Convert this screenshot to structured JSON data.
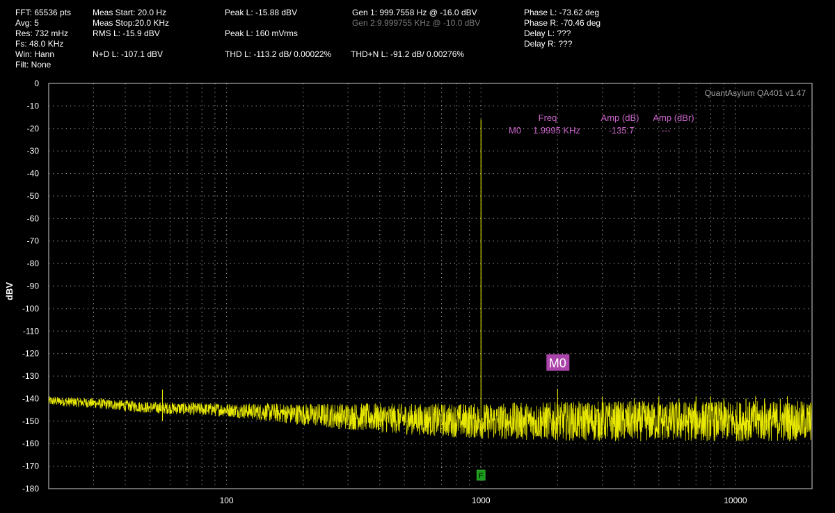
{
  "stats": {
    "fft": "FFT: 65536 pts",
    "avg": "Avg: 5",
    "res": "Res: 732 mHz",
    "fs": "Fs: 48.0 KHz",
    "win": "Win: Hann",
    "filt": "Filt: None",
    "meas_start": "Meas Start: 20.0 Hz",
    "meas_stop": "Meas Stop:20.0 KHz",
    "rms_l": "RMS L: -15.9 dBV",
    "nd_l": "N+D L: -107.1 dBV",
    "peak_l_dbv": "Peak L: -15.88 dBV",
    "peak_l_vrms": "Peak L: 160 mVrms",
    "thd_l": "THD L: -113.2 dB/ 0.00022%",
    "gen1": "Gen 1: 999.7558 Hz @ -16.0  dBV",
    "gen2": "Gen 2:9.999755 KHz @ -10.0  dBV",
    "thdn_l": "THD+N L: -91.2 dB/ 0.00276%",
    "phase_l": "Phase L: -73.62 deg",
    "phase_r": "Phase R: -70.46 deg",
    "delay_l": "Delay L: ???",
    "delay_r": "Delay R: ???"
  },
  "colors": {
    "trace": "#e8e800",
    "marker": "#cc66cc",
    "marker_label_bg": "#aa44aa",
    "fundamental_marker": "#1a9a1a",
    "grid": "#9a9a9a",
    "frame": "#cfcfcf"
  },
  "chart_data": {
    "type": "line",
    "watermark": "QuantAsylum QA401 v1.47",
    "ylabel": "dBV",
    "xscale": "log",
    "xlim": [
      20,
      20000
    ],
    "ylim": [
      -180,
      0
    ],
    "x_ticks": [
      100,
      1000,
      10000
    ],
    "x_tick_labels": [
      "100",
      "1000",
      "10000"
    ],
    "y_ticks": [
      0,
      -10,
      -20,
      -30,
      -40,
      -50,
      -60,
      -70,
      -80,
      -90,
      -100,
      -110,
      -120,
      -130,
      -140,
      -150,
      -160,
      -170,
      -180
    ],
    "y_tick_labels": [
      "0",
      "-10",
      "-20",
      "-30",
      "-40",
      "-50",
      "-60",
      "-70",
      "-80",
      "-90",
      "-100",
      "-110",
      "-120",
      "-130",
      "-140",
      "-150",
      "-160",
      "-170",
      "-180"
    ],
    "grid": true,
    "series": [
      {
        "noise_floor": [
          [
            20,
            -141
          ],
          [
            30,
            -142
          ],
          [
            50,
            -144
          ],
          [
            100,
            -145
          ],
          [
            200,
            -147
          ],
          [
            500,
            -149
          ],
          [
            1000,
            -150
          ],
          [
            2000,
            -150
          ],
          [
            5000,
            -150
          ],
          [
            10000,
            -150
          ],
          [
            20000,
            -150
          ]
        ],
        "noise_spread_db": [
          [
            20,
            2
          ],
          [
            100,
            3
          ],
          [
            300,
            6
          ],
          [
            1000,
            8
          ],
          [
            3000,
            9
          ],
          [
            20000,
            9
          ]
        ],
        "peaks": [
          {
            "x": 56,
            "y": -136
          },
          {
            "x": 999.76,
            "y": -15.9
          },
          {
            "x": 1999.5,
            "y": -135.7
          },
          {
            "x": 3000,
            "y": -139
          },
          {
            "x": 4000,
            "y": -140
          },
          {
            "x": 5000,
            "y": -139
          },
          {
            "x": 6000,
            "y": -140
          },
          {
            "x": 7000,
            "y": -139
          },
          {
            "x": 8000,
            "y": -139
          },
          {
            "x": 9000,
            "y": -140
          },
          {
            "x": 11000,
            "y": -140
          },
          {
            "x": 12000,
            "y": -139
          },
          {
            "x": 13000,
            "y": -140
          },
          {
            "x": 15000,
            "y": -140
          },
          {
            "x": 16000,
            "y": -139
          }
        ]
      }
    ],
    "marker_table": {
      "headers": [
        "Freq",
        "Amp (dB)",
        "Amp (dBr)"
      ],
      "rows": [
        {
          "name": "M0",
          "freq": "1.9995 KHz",
          "amp_db": "-135.7",
          "amp_dbr": "---"
        }
      ]
    },
    "markers": [
      {
        "label": "M0",
        "x": 1999.5,
        "y": -135.7
      }
    ],
    "fundamental_marker": {
      "label": "F",
      "x": 999.76
    }
  }
}
